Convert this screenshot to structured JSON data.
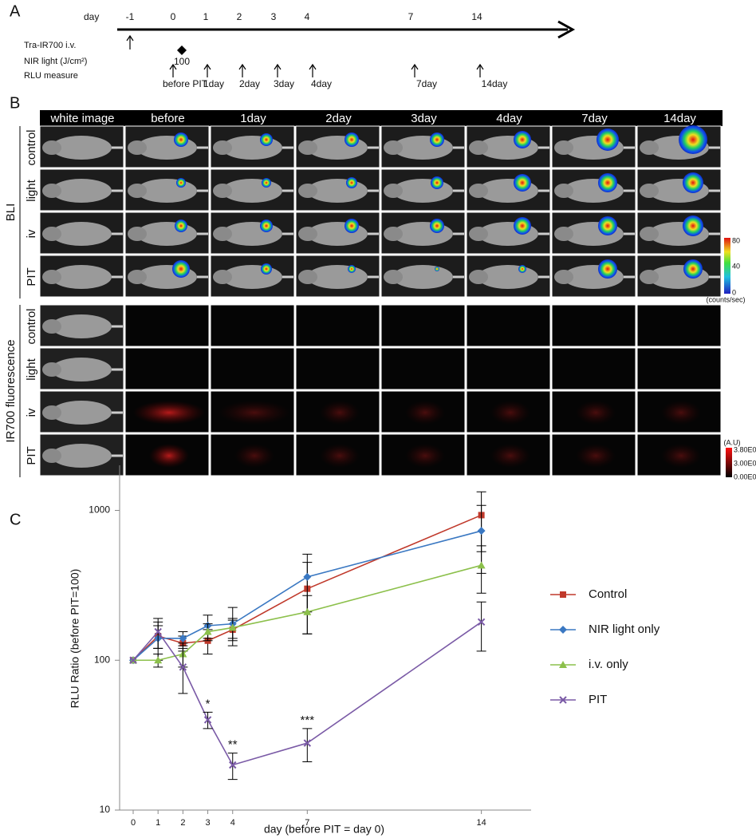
{
  "panel_a": {
    "letter": "A",
    "day_label": "day",
    "days": [
      "-1",
      "0",
      "1",
      "2",
      "3",
      "4",
      "7",
      "14"
    ],
    "rows": [
      "Tra-IR700 i.v.",
      "NIR light (J/cm²)",
      "RLU measure"
    ],
    "dose": "100",
    "measure_labels": [
      "before PIT",
      "1day",
      "2day",
      "3day",
      "4day",
      "7day",
      "14day"
    ]
  },
  "panel_b": {
    "letter": "B",
    "columns": [
      "white image",
      "before",
      "1day",
      "2day",
      "3day",
      "4day",
      "7day",
      "14day"
    ],
    "groups": [
      {
        "label": "BLI",
        "rows": [
          "control",
          "light",
          "iv",
          "PIT"
        ]
      },
      {
        "label": "IR700 fluorescence",
        "rows": [
          "control",
          "light",
          "iv",
          "PIT"
        ]
      }
    ],
    "bli_scale": {
      "ticks": [
        "80",
        "40",
        "0"
      ],
      "unit": "(counts/sec)"
    },
    "fl_scale": {
      "unit": "(A.U)",
      "ticks": [
        "3.80E0",
        "3.00E0",
        "0.00E0"
      ]
    }
  },
  "chart_data": {
    "type": "line",
    "panel_letter": "C",
    "x_label": "day (before PIT = day 0)",
    "y_label": "RLU Ratio (before PIT=100)",
    "x": [
      0,
      1,
      2,
      3,
      4,
      7,
      14
    ],
    "xlim": [
      0,
      16
    ],
    "xticks": [
      0,
      1,
      2,
      3,
      4,
      7,
      14
    ],
    "ylim": [
      10,
      2000
    ],
    "yticks": [
      10,
      100,
      1000
    ],
    "log_scale": true,
    "legend": "right",
    "series": [
      {
        "name": "Control",
        "color": "#c0392b",
        "marker": "square",
        "values": [
          100,
          145,
          130,
          135,
          160,
          300,
          930
        ],
        "errors": [
          0,
          25,
          15,
          25,
          25,
          150,
          400
        ]
      },
      {
        "name": "NIR light only",
        "color": "#3a78c2",
        "marker": "diamond",
        "values": [
          100,
          140,
          140,
          170,
          175,
          360,
          730
        ],
        "errors": [
          0,
          40,
          15,
          30,
          50,
          150,
          350
        ]
      },
      {
        "name": "i.v. only",
        "color": "#8cc04b",
        "marker": "triangle",
        "values": [
          100,
          100,
          110,
          155,
          165,
          210,
          430
        ],
        "errors": [
          0,
          10,
          20,
          20,
          25,
          60,
          150
        ]
      },
      {
        "name": "PIT",
        "color": "#7a5aa6",
        "marker": "x",
        "values": [
          100,
          155,
          90,
          40,
          20,
          28,
          180
        ],
        "errors": [
          0,
          35,
          30,
          5,
          4,
          7,
          65
        ]
      }
    ],
    "annotations": [
      {
        "text": "*",
        "x": 3
      },
      {
        "text": "**",
        "x": 4
      },
      {
        "text": "***",
        "x": 7
      }
    ]
  }
}
